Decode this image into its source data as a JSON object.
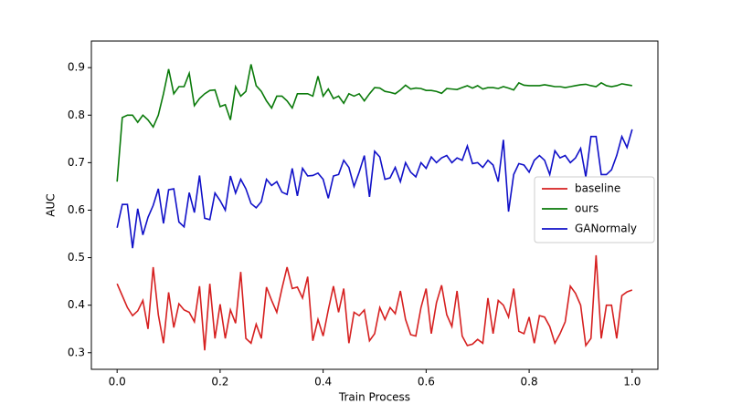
{
  "chart_data": {
    "type": "line",
    "xlabel": "Train Process",
    "ylabel": "AUC",
    "x": [
      0,
      0.01,
      0.02,
      0.03,
      0.04,
      0.05,
      0.06,
      0.07,
      0.08,
      0.09,
      0.1,
      0.11,
      0.12,
      0.13,
      0.14,
      0.15,
      0.16,
      0.17,
      0.18,
      0.19,
      0.2,
      0.21,
      0.22,
      0.23,
      0.24,
      0.25,
      0.26,
      0.27,
      0.28,
      0.29,
      0.3,
      0.31,
      0.32,
      0.33,
      0.34,
      0.35,
      0.36,
      0.37,
      0.38,
      0.39,
      0.4,
      0.41,
      0.42,
      0.43,
      0.44,
      0.45,
      0.46,
      0.47,
      0.48,
      0.49,
      0.5,
      0.51,
      0.52,
      0.53,
      0.54,
      0.55,
      0.56,
      0.57,
      0.58,
      0.59,
      0.6,
      0.61,
      0.62,
      0.63,
      0.64,
      0.65,
      0.66,
      0.67,
      0.68,
      0.69,
      0.7,
      0.71,
      0.72,
      0.73,
      0.74,
      0.75,
      0.76,
      0.77,
      0.78,
      0.79,
      0.8,
      0.81,
      0.82,
      0.83,
      0.84,
      0.85,
      0.86,
      0.87,
      0.88,
      0.89,
      0.9,
      0.91,
      0.92,
      0.93,
      0.94,
      0.95,
      0.96,
      0.97,
      0.98,
      0.99,
      1
    ],
    "series": [
      {
        "name": "baseline",
        "color": "#d62020",
        "values": [
          0.445,
          0.42,
          0.395,
          0.378,
          0.388,
          0.41,
          0.35,
          0.48,
          0.38,
          0.32,
          0.427,
          0.353,
          0.403,
          0.39,
          0.385,
          0.365,
          0.44,
          0.305,
          0.445,
          0.33,
          0.402,
          0.33,
          0.39,
          0.362,
          0.47,
          0.33,
          0.32,
          0.36,
          0.33,
          0.438,
          0.41,
          0.385,
          0.435,
          0.48,
          0.435,
          0.438,
          0.415,
          0.46,
          0.325,
          0.37,
          0.335,
          0.39,
          0.44,
          0.385,
          0.435,
          0.32,
          0.385,
          0.378,
          0.39,
          0.325,
          0.34,
          0.395,
          0.37,
          0.395,
          0.382,
          0.43,
          0.37,
          0.338,
          0.335,
          0.395,
          0.435,
          0.34,
          0.405,
          0.442,
          0.38,
          0.355,
          0.43,
          0.335,
          0.315,
          0.318,
          0.328,
          0.32,
          0.415,
          0.34,
          0.41,
          0.4,
          0.375,
          0.435,
          0.345,
          0.34,
          0.375,
          0.32,
          0.378,
          0.375,
          0.355,
          0.32,
          0.34,
          0.365,
          0.44,
          0.425,
          0.4,
          0.315,
          0.33,
          0.505,
          0.33,
          0.4,
          0.4,
          0.33,
          0.42,
          0.428,
          0.432
        ]
      },
      {
        "name": "ours",
        "color": "#0a7a0a",
        "values": [
          0.66,
          0.795,
          0.8,
          0.8,
          0.785,
          0.8,
          0.79,
          0.775,
          0.8,
          0.845,
          0.897,
          0.845,
          0.86,
          0.86,
          0.888,
          0.82,
          0.835,
          0.845,
          0.852,
          0.853,
          0.818,
          0.822,
          0.79,
          0.86,
          0.84,
          0.85,
          0.907,
          0.862,
          0.85,
          0.83,
          0.815,
          0.84,
          0.84,
          0.83,
          0.815,
          0.845,
          0.845,
          0.845,
          0.84,
          0.882,
          0.84,
          0.855,
          0.835,
          0.84,
          0.825,
          0.845,
          0.84,
          0.845,
          0.83,
          0.845,
          0.858,
          0.857,
          0.85,
          0.848,
          0.845,
          0.853,
          0.863,
          0.855,
          0.857,
          0.856,
          0.852,
          0.852,
          0.85,
          0.846,
          0.856,
          0.855,
          0.854,
          0.858,
          0.862,
          0.857,
          0.862,
          0.855,
          0.858,
          0.858,
          0.856,
          0.86,
          0.857,
          0.853,
          0.868,
          0.863,
          0.862,
          0.862,
          0.862,
          0.864,
          0.862,
          0.86,
          0.86,
          0.858,
          0.86,
          0.862,
          0.864,
          0.865,
          0.862,
          0.86,
          0.868,
          0.862,
          0.86,
          0.862,
          0.866,
          0.864,
          0.862
        ]
      },
      {
        "name": "GANormaly",
        "color": "#1010c8",
        "values": [
          0.563,
          0.612,
          0.612,
          0.52,
          0.603,
          0.548,
          0.585,
          0.61,
          0.645,
          0.572,
          0.643,
          0.645,
          0.575,
          0.565,
          0.637,
          0.595,
          0.673,
          0.583,
          0.58,
          0.636,
          0.62,
          0.6,
          0.672,
          0.636,
          0.665,
          0.645,
          0.614,
          0.605,
          0.618,
          0.665,
          0.652,
          0.66,
          0.638,
          0.633,
          0.688,
          0.63,
          0.688,
          0.672,
          0.673,
          0.678,
          0.665,
          0.625,
          0.672,
          0.675,
          0.705,
          0.69,
          0.65,
          0.68,
          0.715,
          0.628,
          0.724,
          0.712,
          0.665,
          0.668,
          0.69,
          0.66,
          0.7,
          0.68,
          0.67,
          0.7,
          0.688,
          0.712,
          0.7,
          0.71,
          0.715,
          0.7,
          0.71,
          0.705,
          0.735,
          0.698,
          0.7,
          0.69,
          0.705,
          0.695,
          0.66,
          0.748,
          0.597,
          0.675,
          0.698,
          0.695,
          0.68,
          0.705,
          0.715,
          0.705,
          0.675,
          0.725,
          0.71,
          0.715,
          0.7,
          0.71,
          0.73,
          0.67,
          0.755,
          0.755,
          0.675,
          0.675,
          0.685,
          0.715,
          0.755,
          0.732,
          0.77
        ]
      }
    ],
    "xlim": [
      -0.05,
      1.05
    ],
    "ylim": [
      0.265,
      0.956
    ],
    "xticks": [
      {
        "value": 0,
        "label": "0.0"
      },
      0.2,
      0.4,
      0.6,
      0.8,
      {
        "value": 1,
        "label": "1.0"
      }
    ],
    "yticks": [
      0.3,
      0.4,
      0.5,
      0.6,
      0.7,
      0.8,
      0.9
    ],
    "legend": "right"
  }
}
